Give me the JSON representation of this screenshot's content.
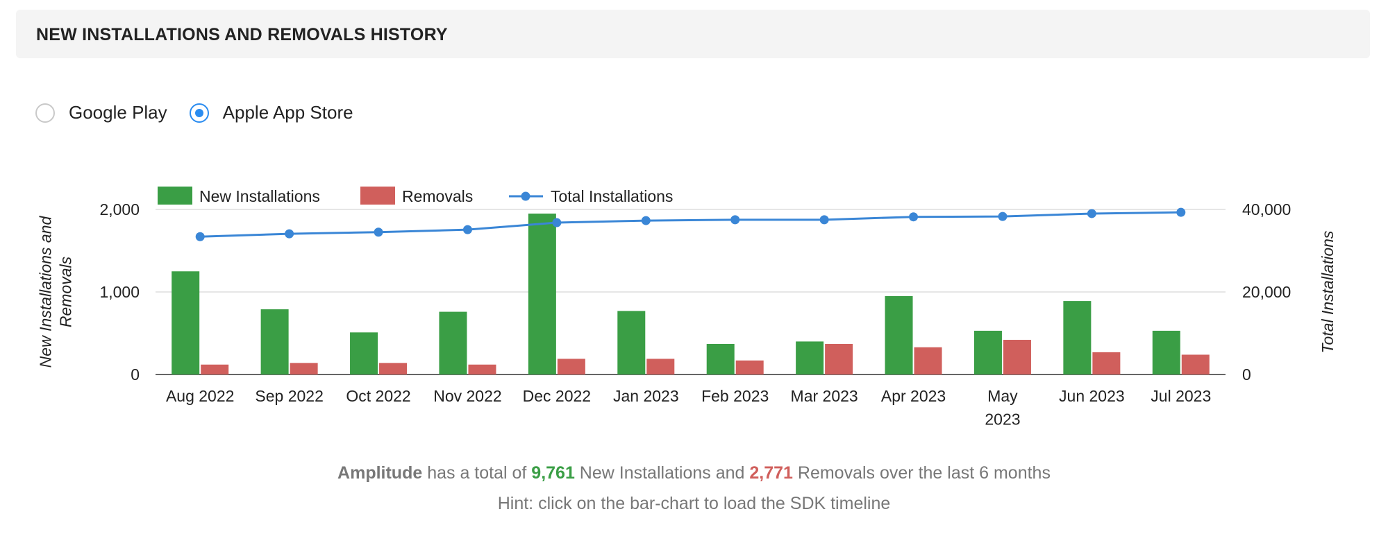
{
  "header": {
    "title": "NEW INSTALLATIONS AND REMOVALS HISTORY"
  },
  "store_options": [
    {
      "label": "Google Play",
      "selected": false
    },
    {
      "label": "Apple App Store",
      "selected": true
    }
  ],
  "chart_data": {
    "type": "bar",
    "categories": [
      "Aug 2022",
      "Sep 2022",
      "Oct 2022",
      "Nov 2022",
      "Dec 2022",
      "Jan 2023",
      "Feb 2023",
      "Mar 2023",
      "Apr 2023",
      "May 2023",
      "Jun 2023",
      "Jul 2023"
    ],
    "series": [
      {
        "name": "New Installations",
        "kind": "bar",
        "axis": "left",
        "color": "#3a9e45",
        "values": [
          1250,
          790,
          510,
          760,
          1950,
          770,
          370,
          400,
          950,
          530,
          890,
          530
        ]
      },
      {
        "name": "Removals",
        "kind": "bar",
        "axis": "left",
        "color": "#d05f5c",
        "values": [
          120,
          140,
          140,
          120,
          190,
          190,
          170,
          370,
          330,
          420,
          270,
          240
        ]
      },
      {
        "name": "Total Installations",
        "kind": "line",
        "axis": "right",
        "color": "#3a86d6",
        "values": [
          33400,
          34100,
          34500,
          35100,
          36800,
          37300,
          37500,
          37500,
          38200,
          38300,
          39000,
          39300
        ]
      }
    ],
    "ylabel": "New Installations and Removals",
    "y2label": "Total Installations",
    "ylim": [
      0,
      2000
    ],
    "y2lim": [
      0,
      40000
    ],
    "yticks": [
      "0",
      "1,000",
      "2,000"
    ],
    "y2ticks": [
      "0",
      "20,000",
      "40,000"
    ],
    "legend_position": "top-left",
    "grid": true
  },
  "summary": {
    "brand": "Amplitude",
    "text1": " has a total of ",
    "new_count": "9,761",
    "text2": " New Installations and ",
    "removal_count": "2,771",
    "text3": " Removals over the last 6 months"
  },
  "hint": "Hint: click on the bar-chart to load the SDK timeline"
}
